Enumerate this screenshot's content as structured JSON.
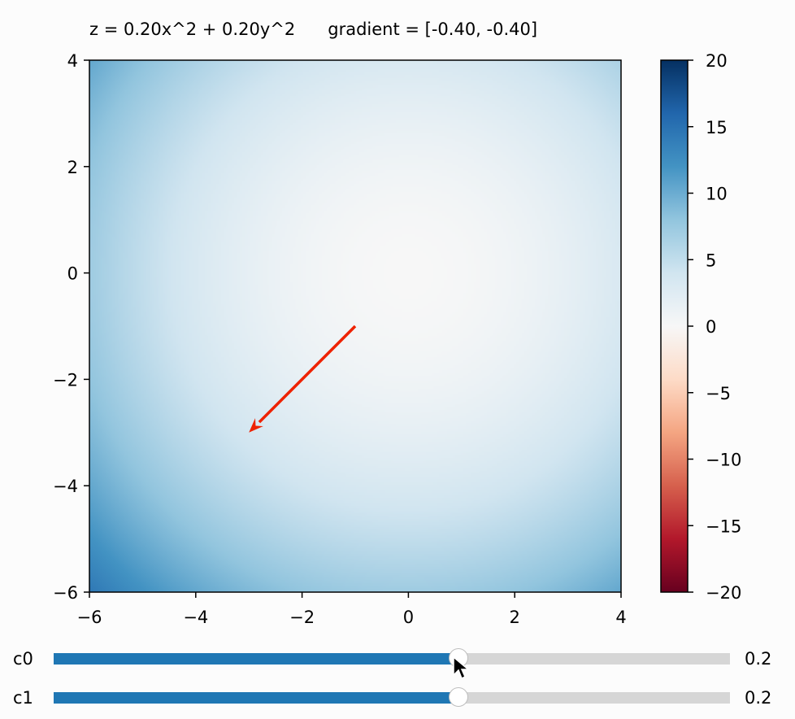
{
  "chart_data": {
    "type": "heatmap",
    "title": "z = 0.20x^2 + 0.20y^2      gradient = [-0.40, -0.40]",
    "xlim": [
      -6,
      4
    ],
    "ylim": [
      -6,
      4
    ],
    "xticks": [
      -6,
      -4,
      -2,
      0,
      2,
      4
    ],
    "yticks": [
      -6,
      -4,
      -2,
      0,
      2,
      4
    ],
    "xtick_labels": [
      "−6",
      "−4",
      "−2",
      "0",
      "2",
      "4"
    ],
    "ytick_labels": [
      "−6",
      "−4",
      "−2",
      "0",
      "2",
      "4"
    ],
    "coefficients": {
      "c0": 0.2,
      "c1": 0.2
    },
    "colormap": "RdBu",
    "colorbar": {
      "range": [
        -20,
        20
      ],
      "ticks": [
        20,
        15,
        10,
        5,
        0,
        -5,
        -10,
        -15,
        -20
      ],
      "tick_labels": [
        "20",
        "15",
        "10",
        "5",
        "0",
        "−5",
        "−10",
        "−15",
        "−20"
      ]
    },
    "arrow": {
      "start": [
        -1,
        -1
      ],
      "end": [
        -3,
        -3
      ],
      "color": "#ee2200"
    }
  },
  "sliders": [
    {
      "label": "c0",
      "value": "0.2",
      "fraction": 0.6
    },
    {
      "label": "c1",
      "value": "0.2",
      "fraction": 0.6
    }
  ],
  "colors": {
    "slider_fill": "#1f77b4",
    "slider_track": "#d6d6d6",
    "arrow": "#ee2200"
  }
}
